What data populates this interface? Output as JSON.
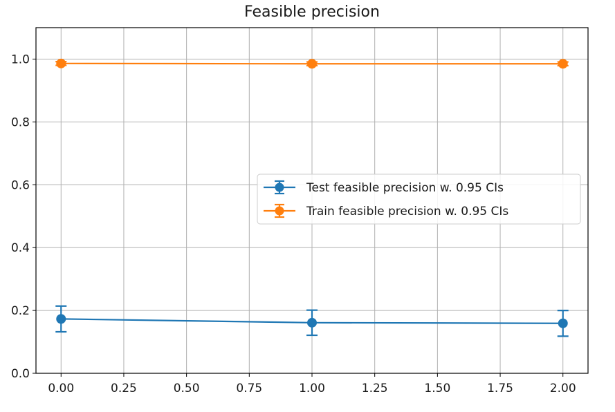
{
  "chart_data": {
    "type": "line",
    "title": "Feasible precision",
    "xlabel": "",
    "ylabel": "",
    "x": [
      0,
      1,
      2
    ],
    "xlim": [
      -0.1,
      2.1
    ],
    "ylim": [
      0,
      1.1
    ],
    "xticks": [
      "0.00",
      "0.25",
      "0.50",
      "0.75",
      "1.00",
      "1.25",
      "1.50",
      "1.75",
      "2.00"
    ],
    "xtick_values": [
      0,
      0.25,
      0.5,
      0.75,
      1.0,
      1.25,
      1.5,
      1.75,
      2.0
    ],
    "yticks": [
      "0.0",
      "0.2",
      "0.4",
      "0.6",
      "0.8",
      "1.0"
    ],
    "ytick_values": [
      0,
      0.2,
      0.4,
      0.6,
      0.8,
      1.0
    ],
    "grid": true,
    "legend_position": "center-right",
    "series": [
      {
        "name": "Test feasible precision w. 0.95 CIs",
        "color": "#1f77b4",
        "values": [
          0.173,
          0.161,
          0.159
        ],
        "ci_low": [
          0.132,
          0.121,
          0.118
        ],
        "ci_high": [
          0.214,
          0.201,
          0.2
        ]
      },
      {
        "name": "Train feasible precision w. 0.95 CIs",
        "color": "#ff7f0e",
        "values": [
          0.986,
          0.985,
          0.985
        ],
        "ci_low": [
          0.98,
          0.979,
          0.979
        ],
        "ci_high": [
          0.992,
          0.991,
          0.991
        ]
      }
    ]
  }
}
